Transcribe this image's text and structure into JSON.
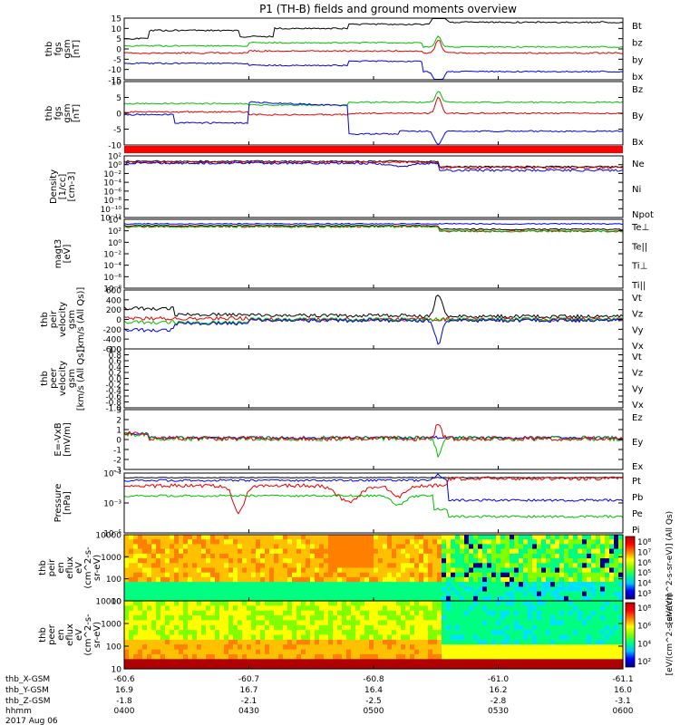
{
  "title": "P1 (TH-B) fields and ground moments overview",
  "chart_data": {
    "type": "line",
    "x_ticks": [
      "0400",
      "0430",
      "0500",
      "0530",
      "0600"
    ],
    "x_label": "hhmm",
    "date_label": "2017 Aug 06",
    "ephemeris": [
      {
        "label": "thb_X-GSM",
        "values": [
          "-60.6",
          "-60.7",
          "-60.8",
          "-61.0",
          "-61.1"
        ]
      },
      {
        "label": "thb_Y-GSM",
        "values": [
          "16.9",
          "16.7",
          "16.4",
          "16.2",
          "16.0"
        ]
      },
      {
        "label": "thb_Z-GSM",
        "values": [
          "-1.8",
          "-2.1",
          "-2.5",
          "-2.8",
          "-3.1"
        ]
      }
    ],
    "panels": [
      {
        "id": "fgs_gsm",
        "ylabel": [
          "thb",
          "fgs",
          "gsm",
          "[nT]"
        ],
        "ylim": [
          -15,
          15
        ],
        "scale": "linear",
        "ticks": [
          "15",
          "10",
          "5",
          "0",
          "-5",
          "-10",
          "-15"
        ],
        "legend": [
          {
            "name": "Bt",
            "color": "#000000"
          },
          {
            "name": "bz",
            "color": "#e60000"
          },
          {
            "name": "by",
            "color": "#00c000"
          },
          {
            "name": "bx",
            "color": "#0000e6"
          }
        ]
      },
      {
        "id": "fgs_gsm_2",
        "ylabel": [
          "thb",
          "fgs",
          "gsm",
          "[nT]"
        ],
        "ylim": [
          -13,
          10
        ],
        "scale": "linear",
        "ticks": [
          "10",
          "5",
          "0",
          "-5",
          "-10"
        ],
        "legend": [
          {
            "name": "Bz",
            "color": "#e60000"
          },
          {
            "name": "By",
            "color": "#00c000"
          },
          {
            "name": "Bx",
            "color": "#0000e6"
          }
        ]
      },
      {
        "id": "density",
        "ylabel": [
          "Density",
          "[1/cc]",
          "[cm-3]"
        ],
        "scale": "log",
        "ticks": [
          "10²",
          "10⁰",
          "10⁻²",
          "10⁻⁴",
          "10⁻⁶",
          "10⁻⁸",
          "10⁻¹⁰",
          "10⁻¹²"
        ],
        "legend": [
          {
            "name": "Ne",
            "color": "#e60000"
          },
          {
            "name": "Ni",
            "color": "#000000"
          },
          {
            "name": "Npot",
            "color": "#0000e6"
          }
        ]
      },
      {
        "id": "temperature",
        "ylabel": [
          "magt3",
          "[eV]"
        ],
        "scale": "log",
        "ticks": [
          "10⁴",
          "10²",
          "10⁰",
          "10⁻²",
          "10⁻⁴",
          "10⁻⁶",
          "10⁻⁸"
        ],
        "legend": [
          {
            "name": "Te⊥",
            "color": "#e60000"
          },
          {
            "name": "Te||",
            "color": "#000000"
          },
          {
            "name": "Ti⊥",
            "color": "#00c000"
          },
          {
            "name": "Ti||",
            "color": "#00c000"
          }
        ]
      },
      {
        "id": "velocity_i",
        "ylabel": [
          "thb",
          "peir",
          "velocity",
          "gsm",
          "[km/s (All Qs)]"
        ],
        "ylim": [
          -600,
          600
        ],
        "scale": "linear",
        "ticks": [
          "600",
          "400",
          "200",
          "0",
          "-200",
          "-400",
          "-600"
        ],
        "legend": [
          {
            "name": "Vt",
            "color": "#000000"
          },
          {
            "name": "Vz",
            "color": "#e60000"
          },
          {
            "name": "Vy",
            "color": "#00c000"
          },
          {
            "name": "Vx",
            "color": "#0000e6"
          }
        ]
      },
      {
        "id": "velocity_e",
        "ylabel": [
          "thb",
          "peer",
          "velocity",
          "gsm",
          "[km/s (All Qs)]"
        ],
        "ylim": [
          -1,
          1
        ],
        "scale": "linear",
        "ticks": [
          "1.0",
          "0.8",
          "0.6",
          "0.4",
          "0.2",
          "0.0",
          "-0.2",
          "-0.4",
          "-0.6",
          "-0.8",
          "-1.0"
        ],
        "legend": [
          {
            "name": "Vt",
            "color": "#000000"
          },
          {
            "name": "Vz",
            "color": "#e60000"
          },
          {
            "name": "Vy",
            "color": "#00c000"
          },
          {
            "name": "Vx",
            "color": "#0000e6"
          }
        ]
      },
      {
        "id": "efield",
        "ylabel": [
          "E=-VxB",
          "[mV/m]"
        ],
        "ylim": [
          -3,
          3
        ],
        "scale": "linear",
        "ticks": [
          "3",
          "2",
          "1",
          "0",
          "-1",
          "-2",
          "-3"
        ],
        "legend": [
          {
            "name": "Ez",
            "color": "#e60000"
          },
          {
            "name": "Ey",
            "color": "#00c000"
          },
          {
            "name": "Ex",
            "color": "#0000e6"
          }
        ]
      },
      {
        "id": "pressure",
        "ylabel": [
          "Pressure",
          "[nPa]"
        ],
        "scale": "log",
        "ticks": [
          "10⁻¹",
          "10⁻³",
          "10⁻⁵"
        ],
        "legend": [
          {
            "name": "Pt",
            "color": "#000000"
          },
          {
            "name": "Pb",
            "color": "#e60000"
          },
          {
            "name": "Pe",
            "color": "#00c000"
          },
          {
            "name": "Pi",
            "color": "#0000e6"
          }
        ]
      },
      {
        "id": "ion_spec",
        "type": "heatmap",
        "ylabel": [
          "thb",
          "peir",
          "en",
          "eflux",
          "eV",
          "(cm^2-s-",
          "sr-eV)"
        ],
        "scale": "log",
        "ticks": [
          "10000",
          "1000",
          "100",
          "10"
        ],
        "colorbar": {
          "label": "[eV/(cm^2-s-sr-eV)] (All Qs)",
          "ticks": [
            "10⁸",
            "10⁷",
            "10⁶",
            "10⁵",
            "10⁴",
            "10³"
          ]
        }
      },
      {
        "id": "electron_spec",
        "type": "heatmap",
        "ylabel": [
          "thb",
          "peer",
          "en",
          "eflux",
          "eV",
          "(cm^2-s-",
          "sr-eV)"
        ],
        "scale": "log",
        "ticks": [
          "10000",
          "1000",
          "100",
          "10"
        ],
        "colorbar": {
          "label": "[eV/(cm^2-s-sr-eV)]",
          "ticks": [
            "10⁸",
            "10⁶",
            "10⁴",
            "10²"
          ]
        }
      }
    ]
  }
}
